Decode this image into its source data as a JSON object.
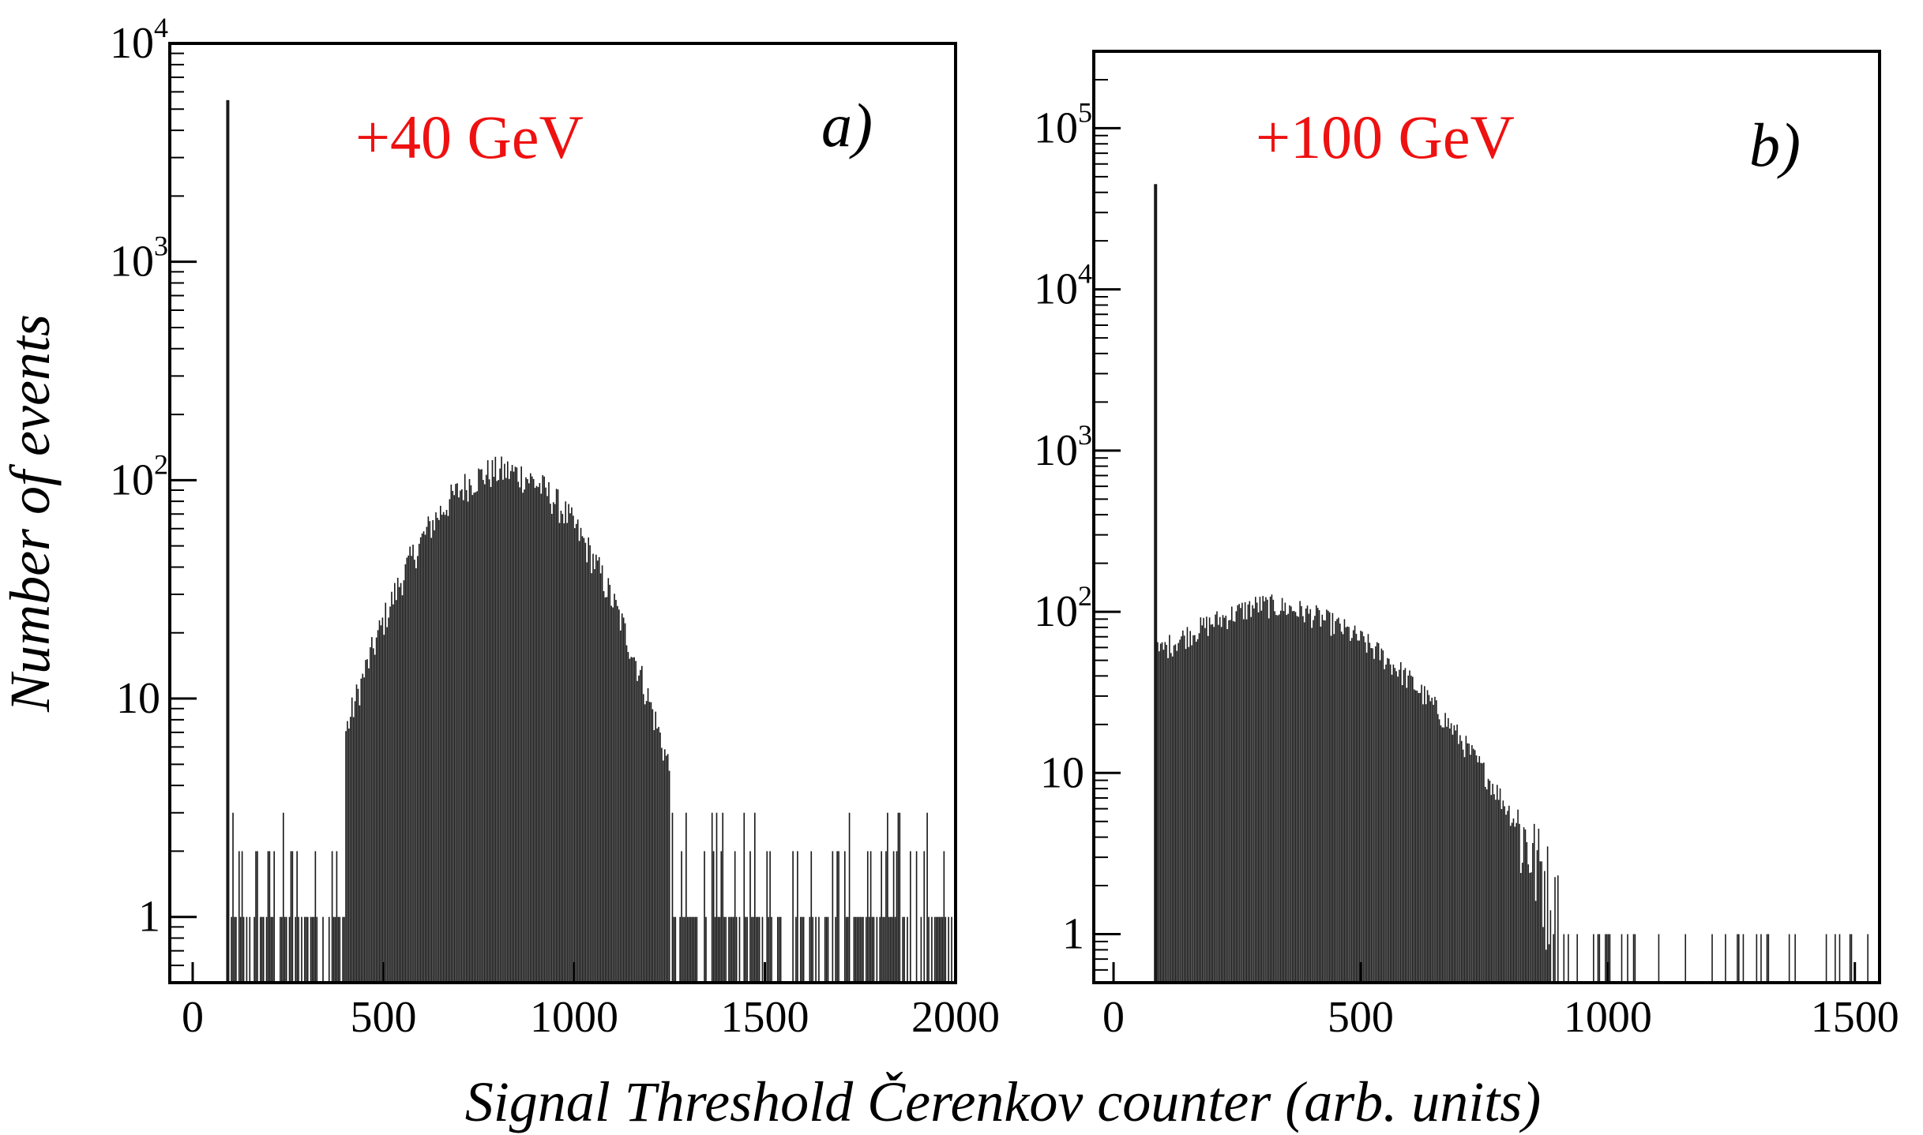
{
  "figure": {
    "ylabel": "Number of events",
    "xlabel": "Signal Threshold Čerenkov counter (arb. units)"
  },
  "colors": {
    "energy_label": "#ee1111",
    "histogram": "#1a1a1a",
    "axes": "#000000"
  },
  "chart_data": [
    {
      "type": "bar",
      "panel": "a)",
      "title": "+40 GeV",
      "xlabel": "Signal Threshold Čerenkov counter (arb. units)",
      "ylabel": "Number of events",
      "yscale": "log",
      "xlim": [
        -60,
        2000
      ],
      "ylim": [
        0.5,
        10000
      ],
      "xticks": [
        0,
        500,
        1000,
        1500,
        2000
      ],
      "xtick_labels": [
        "0",
        "500",
        "1000",
        "1500",
        "2000"
      ],
      "yticks": [
        1,
        10,
        100,
        1000,
        10000
      ],
      "ytick_labels": [
        {
          "base": "1",
          "exp": ""
        },
        {
          "base": "10",
          "exp": ""
        },
        {
          "base": "10",
          "exp": "2"
        },
        {
          "base": "10",
          "exp": "3"
        },
        {
          "base": "10",
          "exp": "4"
        }
      ],
      "pedestal": {
        "x": 92,
        "count": 5500
      },
      "noise_floor_start": 85,
      "peak": {
        "center": 810,
        "sigma": 175,
        "height": 110,
        "min_x": 400,
        "max_x": 1250
      },
      "background_level": [
        1,
        3
      ]
    },
    {
      "type": "bar",
      "panel": "b)",
      "title": "+100 GeV",
      "xlabel": "Signal Threshold Čerenkov counter (arb. units)",
      "ylabel": "Number of events",
      "yscale": "log",
      "xlim": [
        -40,
        1550
      ],
      "ylim": [
        0.5,
        300000
      ],
      "xticks": [
        0,
        500,
        1000,
        1500
      ],
      "xtick_labels": [
        "0",
        "500",
        "1000",
        "1500"
      ],
      "yticks": [
        1,
        10,
        100,
        1000,
        10000,
        100000
      ],
      "ytick_labels": [
        {
          "base": "1",
          "exp": ""
        },
        {
          "base": "10",
          "exp": ""
        },
        {
          "base": "10",
          "exp": "2"
        },
        {
          "base": "10",
          "exp": "3"
        },
        {
          "base": "10",
          "exp": "4"
        },
        {
          "base": "10",
          "exp": "5"
        }
      ],
      "pedestal": {
        "x": 85,
        "count": 45000
      },
      "start_value": 55,
      "peak": {
        "center": 290,
        "sigma": 210,
        "height": 110,
        "min_x": 85,
        "max_x": 900
      },
      "tail_until": 1530
    }
  ]
}
